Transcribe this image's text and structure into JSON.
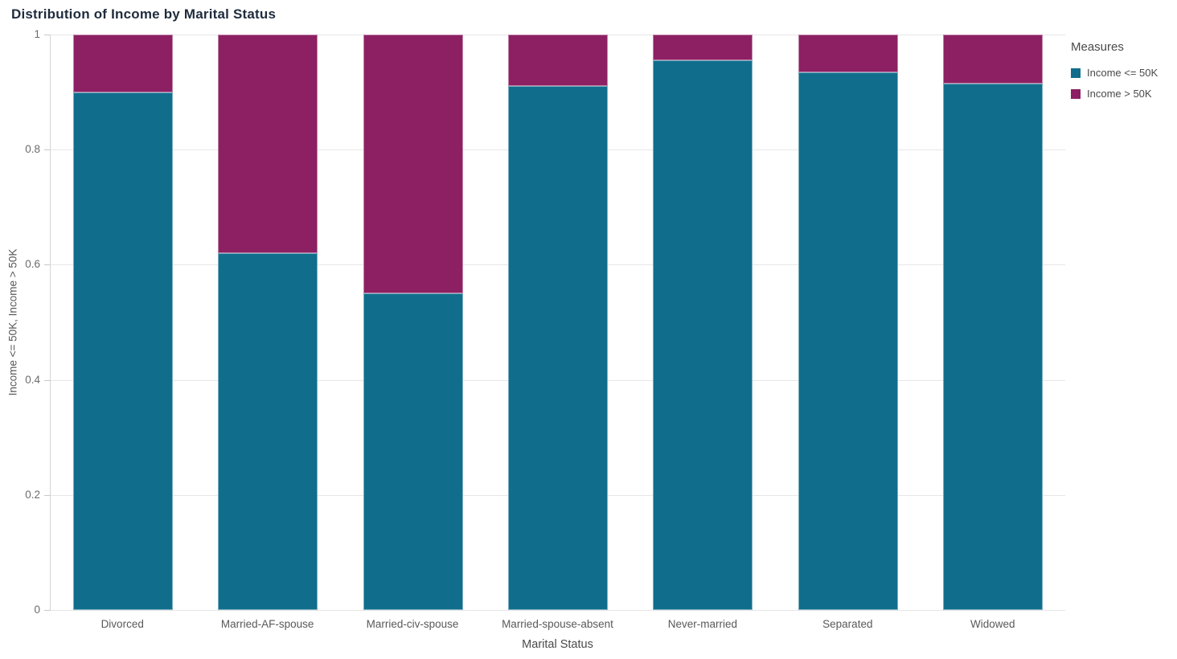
{
  "title": "Distribution of Income by Marital Status",
  "legend": {
    "title": "Measures",
    "items": [
      {
        "label": "Income <= 50K",
        "color": "#106e8c"
      },
      {
        "label": "Income > 50K",
        "color": "#8c2063"
      }
    ]
  },
  "chart_data": {
    "type": "bar",
    "stacked": true,
    "normalized": true,
    "title": "Distribution of Income by Marital Status",
    "xlabel": "Marital Status",
    "ylabel": "Income <= 50K, Income > 50K",
    "categories": [
      "Divorced",
      "Married-AF-spouse",
      "Married-civ-spouse",
      "Married-spouse-absent",
      "Never-married",
      "Separated",
      "Widowed"
    ],
    "series": [
      {
        "name": "Income <= 50K",
        "color": "#106e8c",
        "values": [
          0.9,
          0.62,
          0.55,
          0.91,
          0.955,
          0.935,
          0.915
        ]
      },
      {
        "name": "Income > 50K",
        "color": "#8c2063",
        "values": [
          0.1,
          0.38,
          0.45,
          0.09,
          0.045,
          0.065,
          0.085
        ]
      }
    ],
    "ylim": [
      0,
      1
    ],
    "yticks": [
      0,
      0.2,
      0.4,
      0.6,
      0.8,
      1
    ],
    "ytick_labels": [
      "0",
      "0.2",
      "0.4",
      "0.6",
      "0.8",
      "1"
    ],
    "grid": "horizontal",
    "legend_position": "right"
  },
  "colors": {
    "grid": "#e6e6e6",
    "axis": "#d4d4d4",
    "tick_text": "#6b6b6b",
    "title_text": "#1f2c3d",
    "series_teal": "#106e8c",
    "series_magenta": "#8c2063"
  }
}
